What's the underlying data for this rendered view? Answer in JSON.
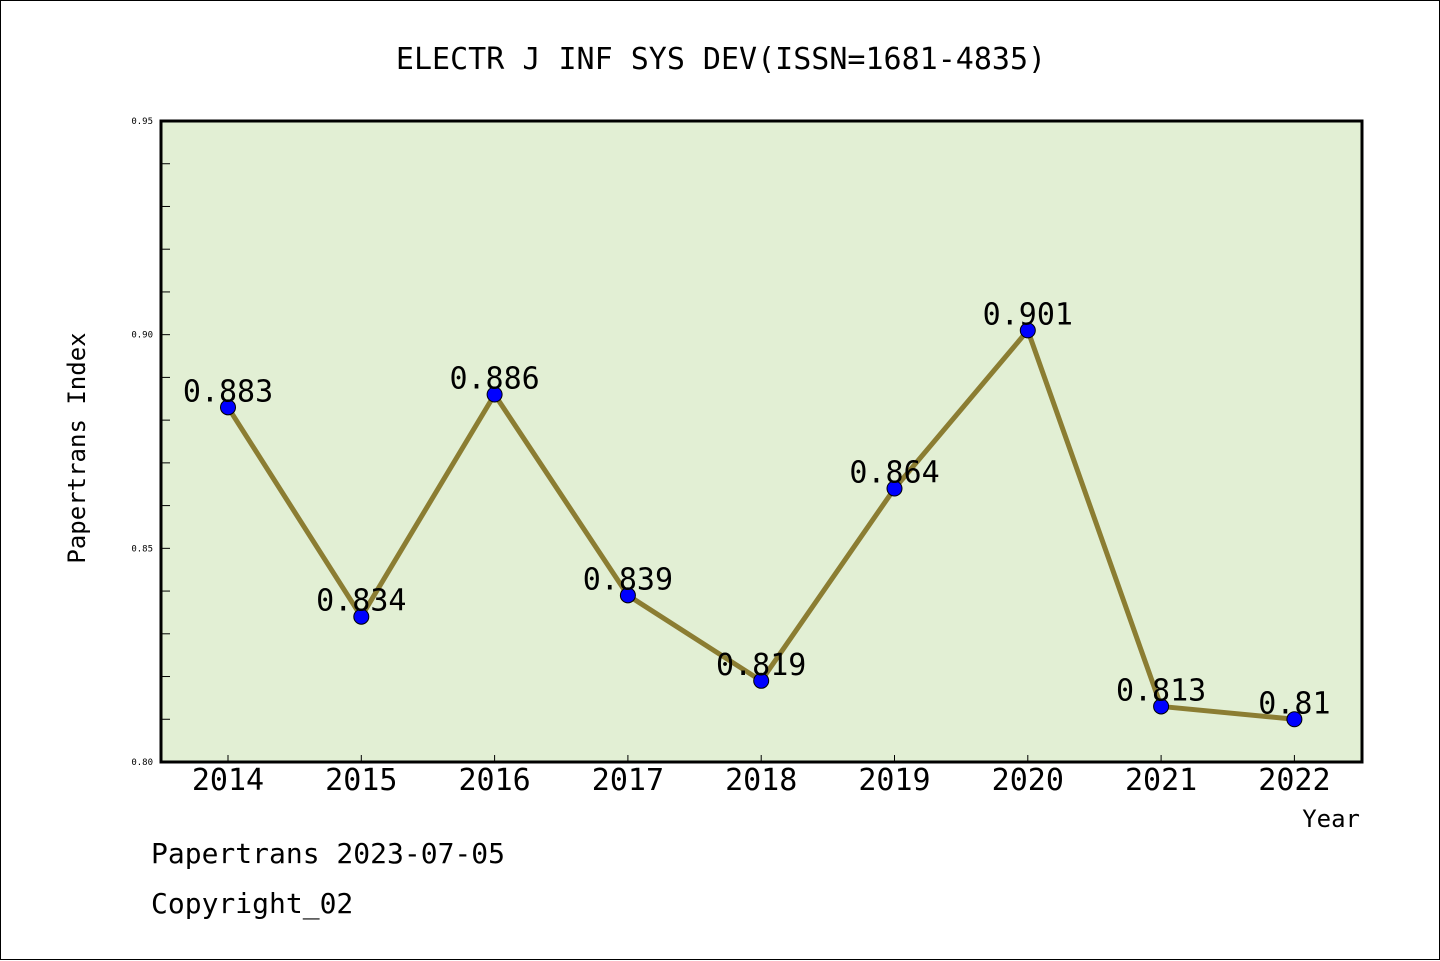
{
  "footer": {
    "line1": "Papertrans 2023-07-05",
    "line2": "Copyright_02"
  },
  "chart_data": {
    "type": "line",
    "title": "ELECTR J INF SYS DEV(ISSN=1681-4835)",
    "xlabel": "Year",
    "ylabel": "Papertrans Index",
    "categories": [
      "2014",
      "2015",
      "2016",
      "2017",
      "2018",
      "2019",
      "2020",
      "2021",
      "2022"
    ],
    "series": [
      {
        "values": [
          0.883,
          0.834,
          0.886,
          0.839,
          0.819,
          0.864,
          0.901,
          0.813,
          0.81
        ],
        "data_labels": [
          "0.883",
          "0.834",
          "0.886",
          "0.839",
          "0.819",
          "0.864",
          "0.901",
          "0.813",
          "0.81"
        ]
      }
    ],
    "ylim": [
      0.8,
      0.95
    ],
    "yticks": [
      "0.80",
      "0.85",
      "0.90",
      "0.95"
    ],
    "grid": false,
    "legend": "none",
    "colors": {
      "plot_background": "#e2efd4",
      "line": "#8b7d32",
      "marker": "#0000ff",
      "axis": "#000000"
    }
  }
}
